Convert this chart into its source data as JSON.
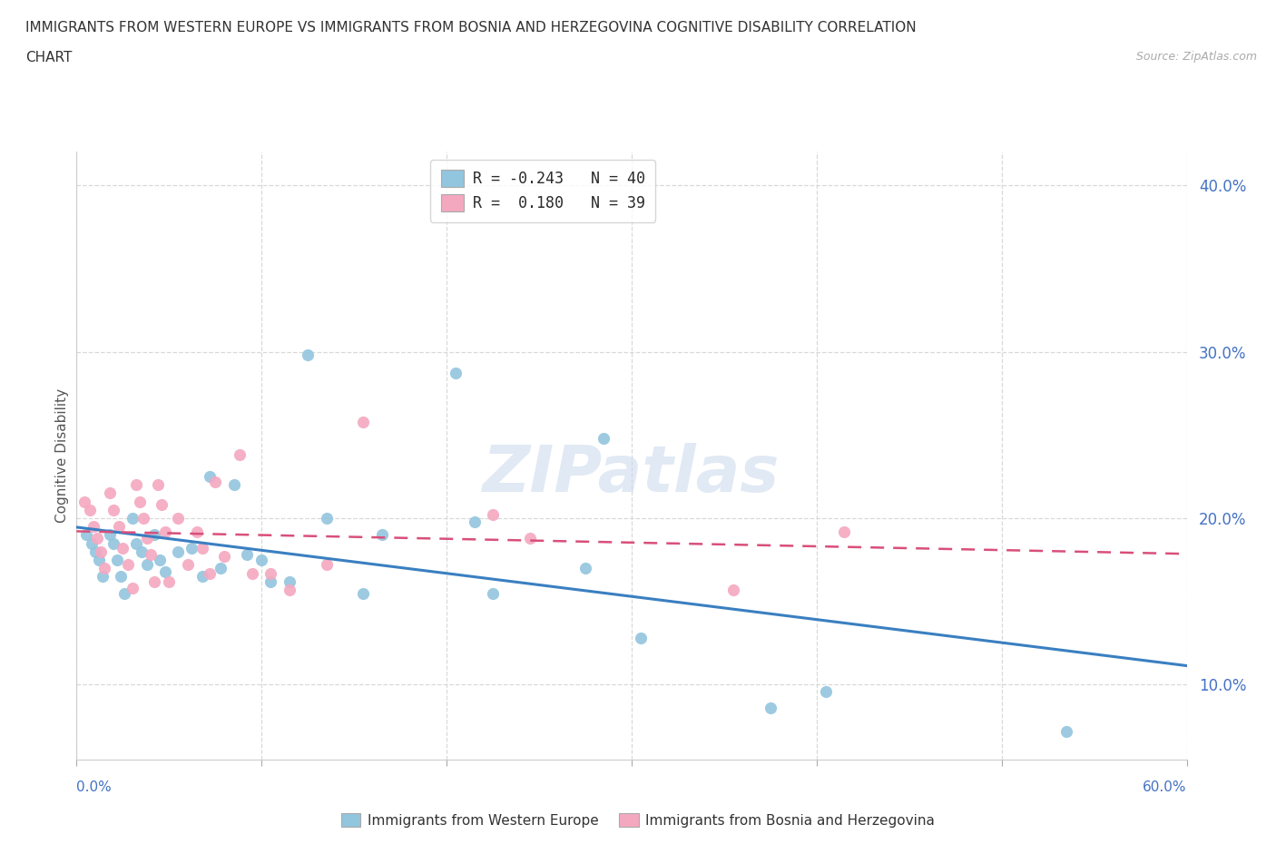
{
  "title_line1": "IMMIGRANTS FROM WESTERN EUROPE VS IMMIGRANTS FROM BOSNIA AND HERZEGOVINA COGNITIVE DISABILITY CORRELATION",
  "title_line2": "CHART",
  "source": "Source: ZipAtlas.com",
  "ylabel": "Cognitive Disability",
  "legend_label1": "Immigrants from Western Europe",
  "legend_label2": "Immigrants from Bosnia and Herzegovina",
  "R1": -0.243,
  "N1": 40,
  "R2": 0.18,
  "N2": 39,
  "color1": "#92c5de",
  "color2": "#f4a8c0",
  "line_color1": "#3a7fc1",
  "line_color2": "#d94f7a",
  "xlim": [
    0.0,
    0.6
  ],
  "ylim": [
    0.055,
    0.42
  ],
  "yticks": [
    0.1,
    0.2,
    0.3,
    0.4
  ],
  "blue_x": [
    0.005,
    0.008,
    0.01,
    0.012,
    0.014,
    0.018,
    0.02,
    0.022,
    0.024,
    0.026,
    0.03,
    0.032,
    0.035,
    0.038,
    0.042,
    0.045,
    0.048,
    0.055,
    0.062,
    0.068,
    0.072,
    0.078,
    0.085,
    0.092,
    0.1,
    0.105,
    0.115,
    0.125,
    0.135,
    0.155,
    0.165,
    0.205,
    0.215,
    0.225,
    0.275,
    0.285,
    0.305,
    0.375,
    0.405,
    0.535
  ],
  "blue_y": [
    0.19,
    0.185,
    0.18,
    0.175,
    0.165,
    0.19,
    0.185,
    0.175,
    0.165,
    0.155,
    0.2,
    0.185,
    0.18,
    0.172,
    0.19,
    0.175,
    0.168,
    0.18,
    0.182,
    0.165,
    0.225,
    0.17,
    0.22,
    0.178,
    0.175,
    0.162,
    0.162,
    0.298,
    0.2,
    0.155,
    0.19,
    0.287,
    0.198,
    0.155,
    0.17,
    0.248,
    0.128,
    0.086,
    0.096,
    0.072
  ],
  "pink_x": [
    0.004,
    0.007,
    0.009,
    0.011,
    0.013,
    0.015,
    0.018,
    0.02,
    0.023,
    0.025,
    0.028,
    0.03,
    0.032,
    0.034,
    0.036,
    0.038,
    0.04,
    0.042,
    0.044,
    0.046,
    0.048,
    0.05,
    0.055,
    0.06,
    0.065,
    0.068,
    0.072,
    0.075,
    0.08,
    0.088,
    0.095,
    0.105,
    0.115,
    0.135,
    0.155,
    0.225,
    0.245,
    0.355,
    0.415
  ],
  "pink_y": [
    0.21,
    0.205,
    0.195,
    0.188,
    0.18,
    0.17,
    0.215,
    0.205,
    0.195,
    0.182,
    0.172,
    0.158,
    0.22,
    0.21,
    0.2,
    0.188,
    0.178,
    0.162,
    0.22,
    0.208,
    0.192,
    0.162,
    0.2,
    0.172,
    0.192,
    0.182,
    0.167,
    0.222,
    0.177,
    0.238,
    0.167,
    0.167,
    0.157,
    0.172,
    0.258,
    0.202,
    0.188,
    0.157,
    0.192
  ],
  "watermark": "ZIPatlas",
  "bg_color": "#ffffff",
  "grid_color": "#d0d0d0"
}
